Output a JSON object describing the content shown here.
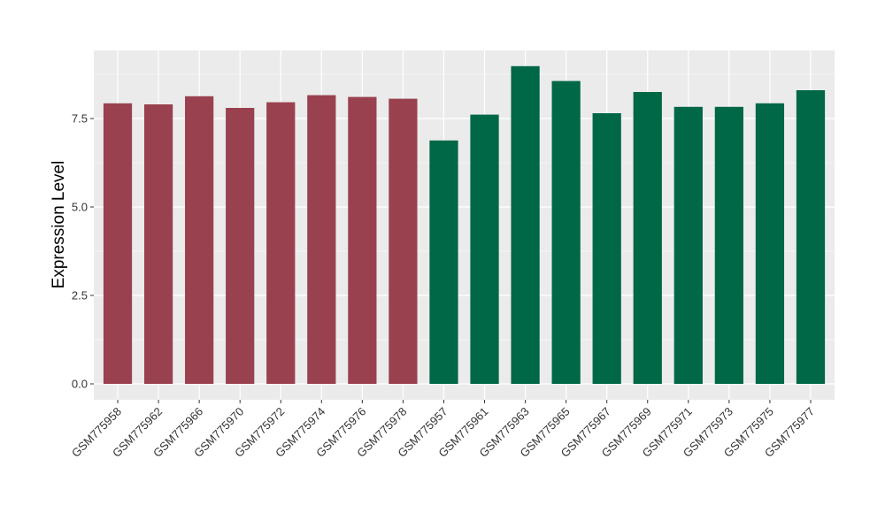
{
  "chart_data": {
    "type": "bar",
    "title": "",
    "xlabel": "",
    "ylabel": "Expression Level",
    "ylim": [
      0,
      9.4
    ],
    "yticks": [
      0.0,
      2.5,
      5.0,
      7.5
    ],
    "ytick_labels": [
      "0.0",
      "2.5",
      "5.0",
      "7.5"
    ],
    "grid": true,
    "legend": "none",
    "panel_background": "#EBEBEB",
    "gridline_color": "#FFFFFF",
    "categories": [
      "GSM775958",
      "GSM775962",
      "GSM775966",
      "GSM775970",
      "GSM775972",
      "GSM775974",
      "GSM775976",
      "GSM775978",
      "GSM775957",
      "GSM775961",
      "GSM775963",
      "GSM775965",
      "GSM775967",
      "GSM775969",
      "GSM775971",
      "GSM775973",
      "GSM775975",
      "GSM775977"
    ],
    "values": [
      7.93,
      7.9,
      8.13,
      7.8,
      7.96,
      8.16,
      8.11,
      8.06,
      6.88,
      7.61,
      8.98,
      8.56,
      7.65,
      8.25,
      7.83,
      7.83,
      7.93,
      8.3
    ],
    "bar_colors": [
      "#9A4150",
      "#9A4150",
      "#9A4150",
      "#9A4150",
      "#9A4150",
      "#9A4150",
      "#9A4150",
      "#9A4150",
      "#006747",
      "#006747",
      "#006747",
      "#006747",
      "#006747",
      "#006747",
      "#006747",
      "#006747",
      "#006747",
      "#006747"
    ]
  }
}
